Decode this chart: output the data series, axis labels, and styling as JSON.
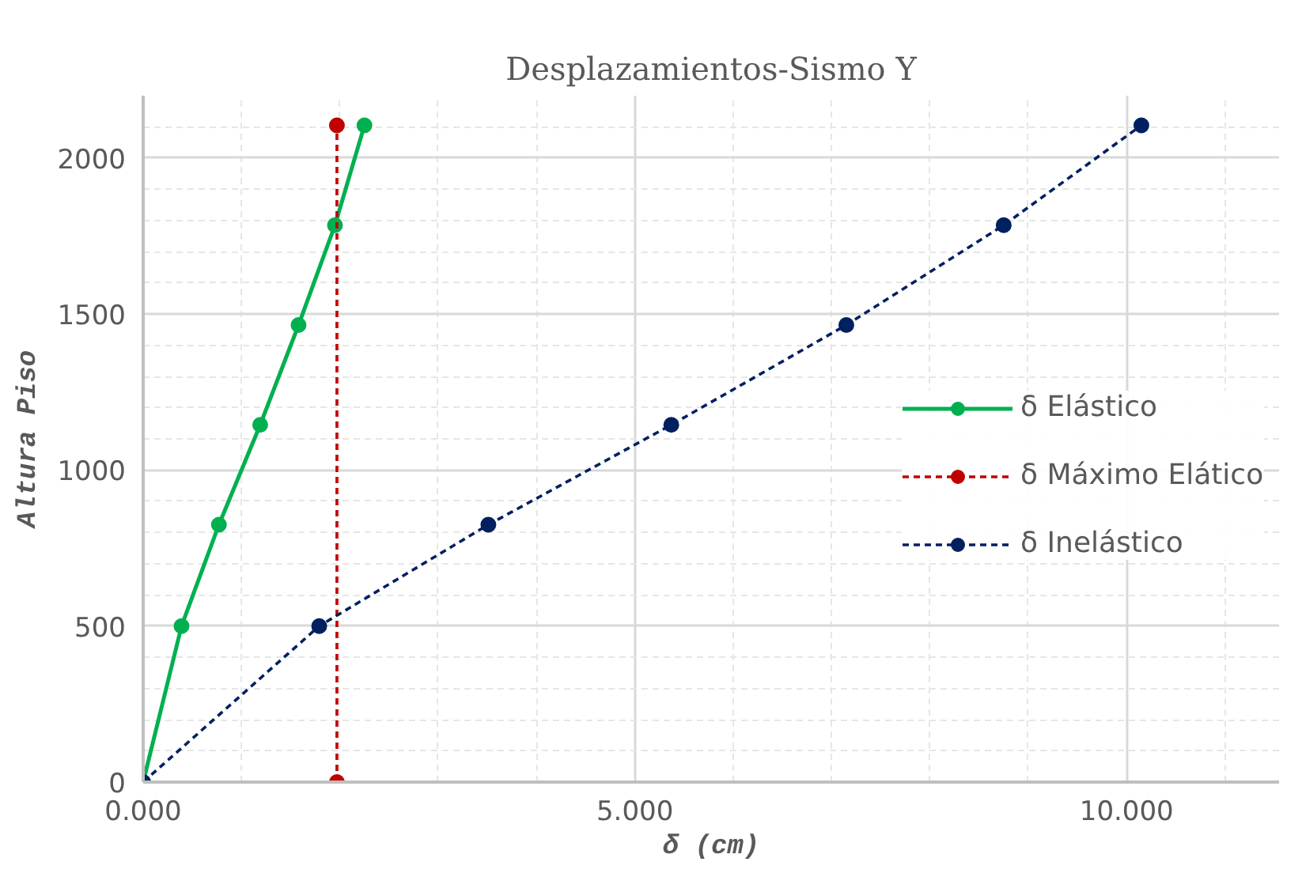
{
  "chart_data": {
    "type": "line",
    "title": "Desplazamientos-Sismo Y",
    "xlabel": "δ (cm)",
    "ylabel": "Altura Piso",
    "xlim": [
      0,
      11.55
    ],
    "ylim": [
      0,
      2200
    ],
    "xticks": [
      {
        "value": 0,
        "label": "0.000"
      },
      {
        "value": 5,
        "label": "5.000"
      },
      {
        "value": 10,
        "label": "10.000"
      }
    ],
    "yticks": [
      0,
      500,
      1000,
      1500,
      2000
    ],
    "grid": true,
    "legend": "right",
    "marker": "circle",
    "series": [
      {
        "name": "δ Elástico",
        "color": "#00b050",
        "line_style": "solid",
        "x": [
          0,
          0.39,
          0.77,
          1.19,
          1.58,
          1.95,
          2.25
        ],
        "values": [
          0,
          500,
          825,
          1145,
          1465,
          1785,
          2105
        ]
      },
      {
        "name": "δ Máximo Elático",
        "color": "#c00000",
        "line_style": "dashed",
        "x": [
          1.97,
          1.97
        ],
        "values": [
          0,
          2105
        ]
      },
      {
        "name": "δ Inelástico",
        "color": "#002060",
        "line_style": "dashed",
        "x": [
          0,
          1.79,
          3.51,
          5.37,
          7.15,
          8.75,
          10.15
        ],
        "values": [
          0,
          500,
          825,
          1145,
          1465,
          1785,
          2105
        ]
      }
    ]
  }
}
